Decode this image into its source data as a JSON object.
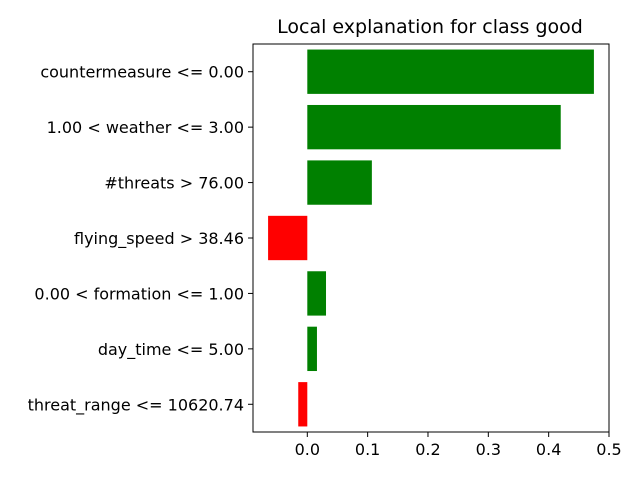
{
  "chart_data": {
    "type": "bar",
    "orientation": "horizontal",
    "title": "Local explanation for class good",
    "xlabel": "",
    "ylabel": "",
    "categories": [
      "countermeasure <= 0.00",
      "1.00 < weather <= 3.00",
      "#threats > 76.00",
      "flying_speed > 38.46",
      "0.00 < formation <= 1.00",
      "day_time <= 5.00",
      "threat_range <= 10620.74"
    ],
    "values": [
      0.475,
      0.42,
      0.107,
      -0.065,
      0.031,
      0.016,
      -0.015
    ],
    "xlim": [
      -0.09,
      0.5
    ],
    "xticks": [
      0.0,
      0.1,
      0.2,
      0.3,
      0.4,
      0.5
    ],
    "xtick_labels": [
      "0.0",
      "0.1",
      "0.2",
      "0.3",
      "0.4",
      "0.5"
    ],
    "colors": {
      "positive": "#008000",
      "negative": "#ff0000"
    },
    "grid": false,
    "legend": "none"
  }
}
